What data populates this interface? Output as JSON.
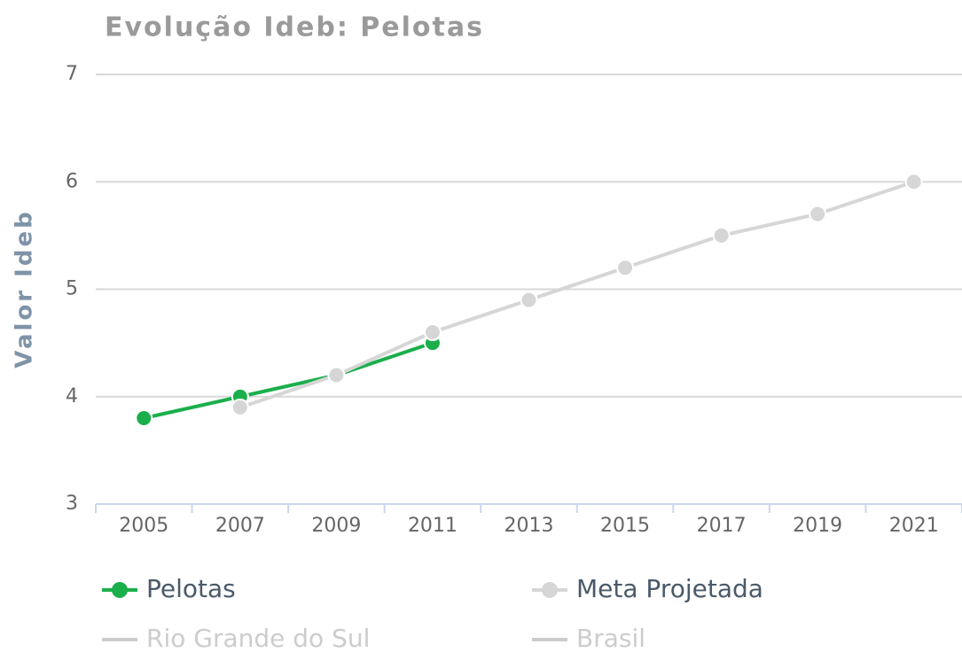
{
  "chart_data": {
    "type": "line",
    "title": "Evolução Ideb: Pelotas",
    "y_label": "Valor Ideb",
    "categories": [
      "2005",
      "2007",
      "2009",
      "2011",
      "2013",
      "2015",
      "2017",
      "2019",
      "2021"
    ],
    "series": [
      {
        "name": "Pelotas",
        "color": "#1aaf4b",
        "visible": true,
        "values": [
          3.8,
          4.0,
          4.2,
          4.5,
          null,
          null,
          null,
          null,
          null
        ]
      },
      {
        "name": "Meta Projetada",
        "color": "#d6d6d6",
        "visible": true,
        "values": [
          null,
          3.9,
          4.2,
          4.6,
          4.9,
          5.2,
          5.5,
          5.7,
          6.0
        ]
      },
      {
        "name": "Rio Grande do Sul",
        "color": "#cccccc",
        "visible": false,
        "values": [
          null,
          null,
          null,
          null,
          null,
          null,
          null,
          null,
          null
        ]
      },
      {
        "name": "Brasil",
        "color": "#cccccc",
        "visible": false,
        "values": [
          null,
          null,
          null,
          null,
          null,
          null,
          null,
          null,
          null
        ]
      }
    ],
    "ylim": [
      3,
      7
    ],
    "yticks": [
      3,
      4,
      5,
      6,
      7
    ],
    "grid": true
  }
}
